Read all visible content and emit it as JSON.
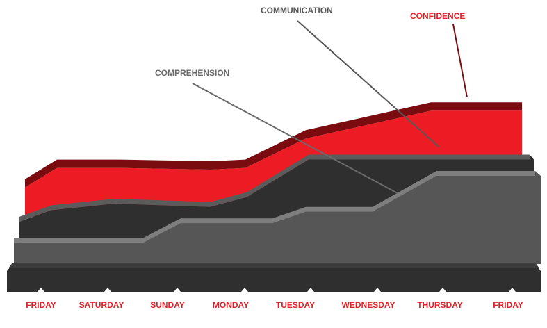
{
  "chart_data": {
    "type": "area",
    "categories": [
      "FRIDAY",
      "SATURDAY",
      "SUNDAY",
      "MONDAY",
      "TUESDAY",
      "WEDNESDAY",
      "THURSDAY",
      "FRIDAY"
    ],
    "series": [
      {
        "name": "CONFIDENCE",
        "values": [
          5.2,
          6.4,
          6.4,
          6.3,
          6.4,
          8.2,
          9.9,
          9.9
        ],
        "color": "#ed1c24"
      },
      {
        "name": "COMMUNICATION",
        "values": [
          2.9,
          3.6,
          4.0,
          3.8,
          4.4,
          6.7,
          6.7,
          6.7
        ],
        "color": "#2f2f2f"
      },
      {
        "name": "COMPREHENSION",
        "values": [
          1.6,
          1.6,
          2.8,
          2.8,
          3.5,
          3.5,
          5.7,
          5.7
        ],
        "color": "#575657"
      }
    ],
    "ylim": [
      0,
      12
    ],
    "grid": false,
    "legend": "callout labels at top",
    "colors": {
      "confidence_top": "#7a0c10",
      "communication_top": "#5b5b5b",
      "comprehension_top": "#7e7e7e",
      "label_gray": "#585858",
      "day_label": "#e21f26"
    }
  }
}
